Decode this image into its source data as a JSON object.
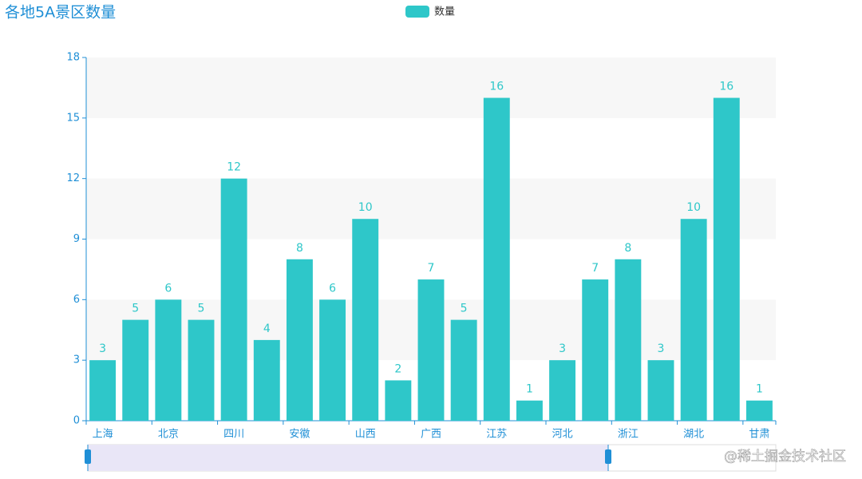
{
  "chart_data": {
    "type": "bar",
    "title": "各地5A景区数量",
    "legend": "数量",
    "watermark": "@稀土掘金技术社区",
    "categories": [
      "上海",
      null,
      "北京",
      null,
      "四川",
      null,
      "安徽",
      null,
      "山西",
      null,
      "广西",
      null,
      "江苏",
      null,
      "河北",
      null,
      "浙江",
      null,
      "湖北",
      null,
      "甘肃"
    ],
    "series": [
      {
        "name": "数量",
        "color": "#2ec7c9",
        "values": [
          3,
          5,
          6,
          5,
          12,
          4,
          8,
          6,
          10,
          2,
          7,
          5,
          16,
          1,
          3,
          7,
          8,
          3,
          10,
          16,
          1
        ]
      }
    ],
    "ylim": [
      0,
      18
    ],
    "yticks": [
      0,
      3,
      6,
      9,
      12,
      15,
      18
    ],
    "split_area": true,
    "value_labels_shown": true
  }
}
